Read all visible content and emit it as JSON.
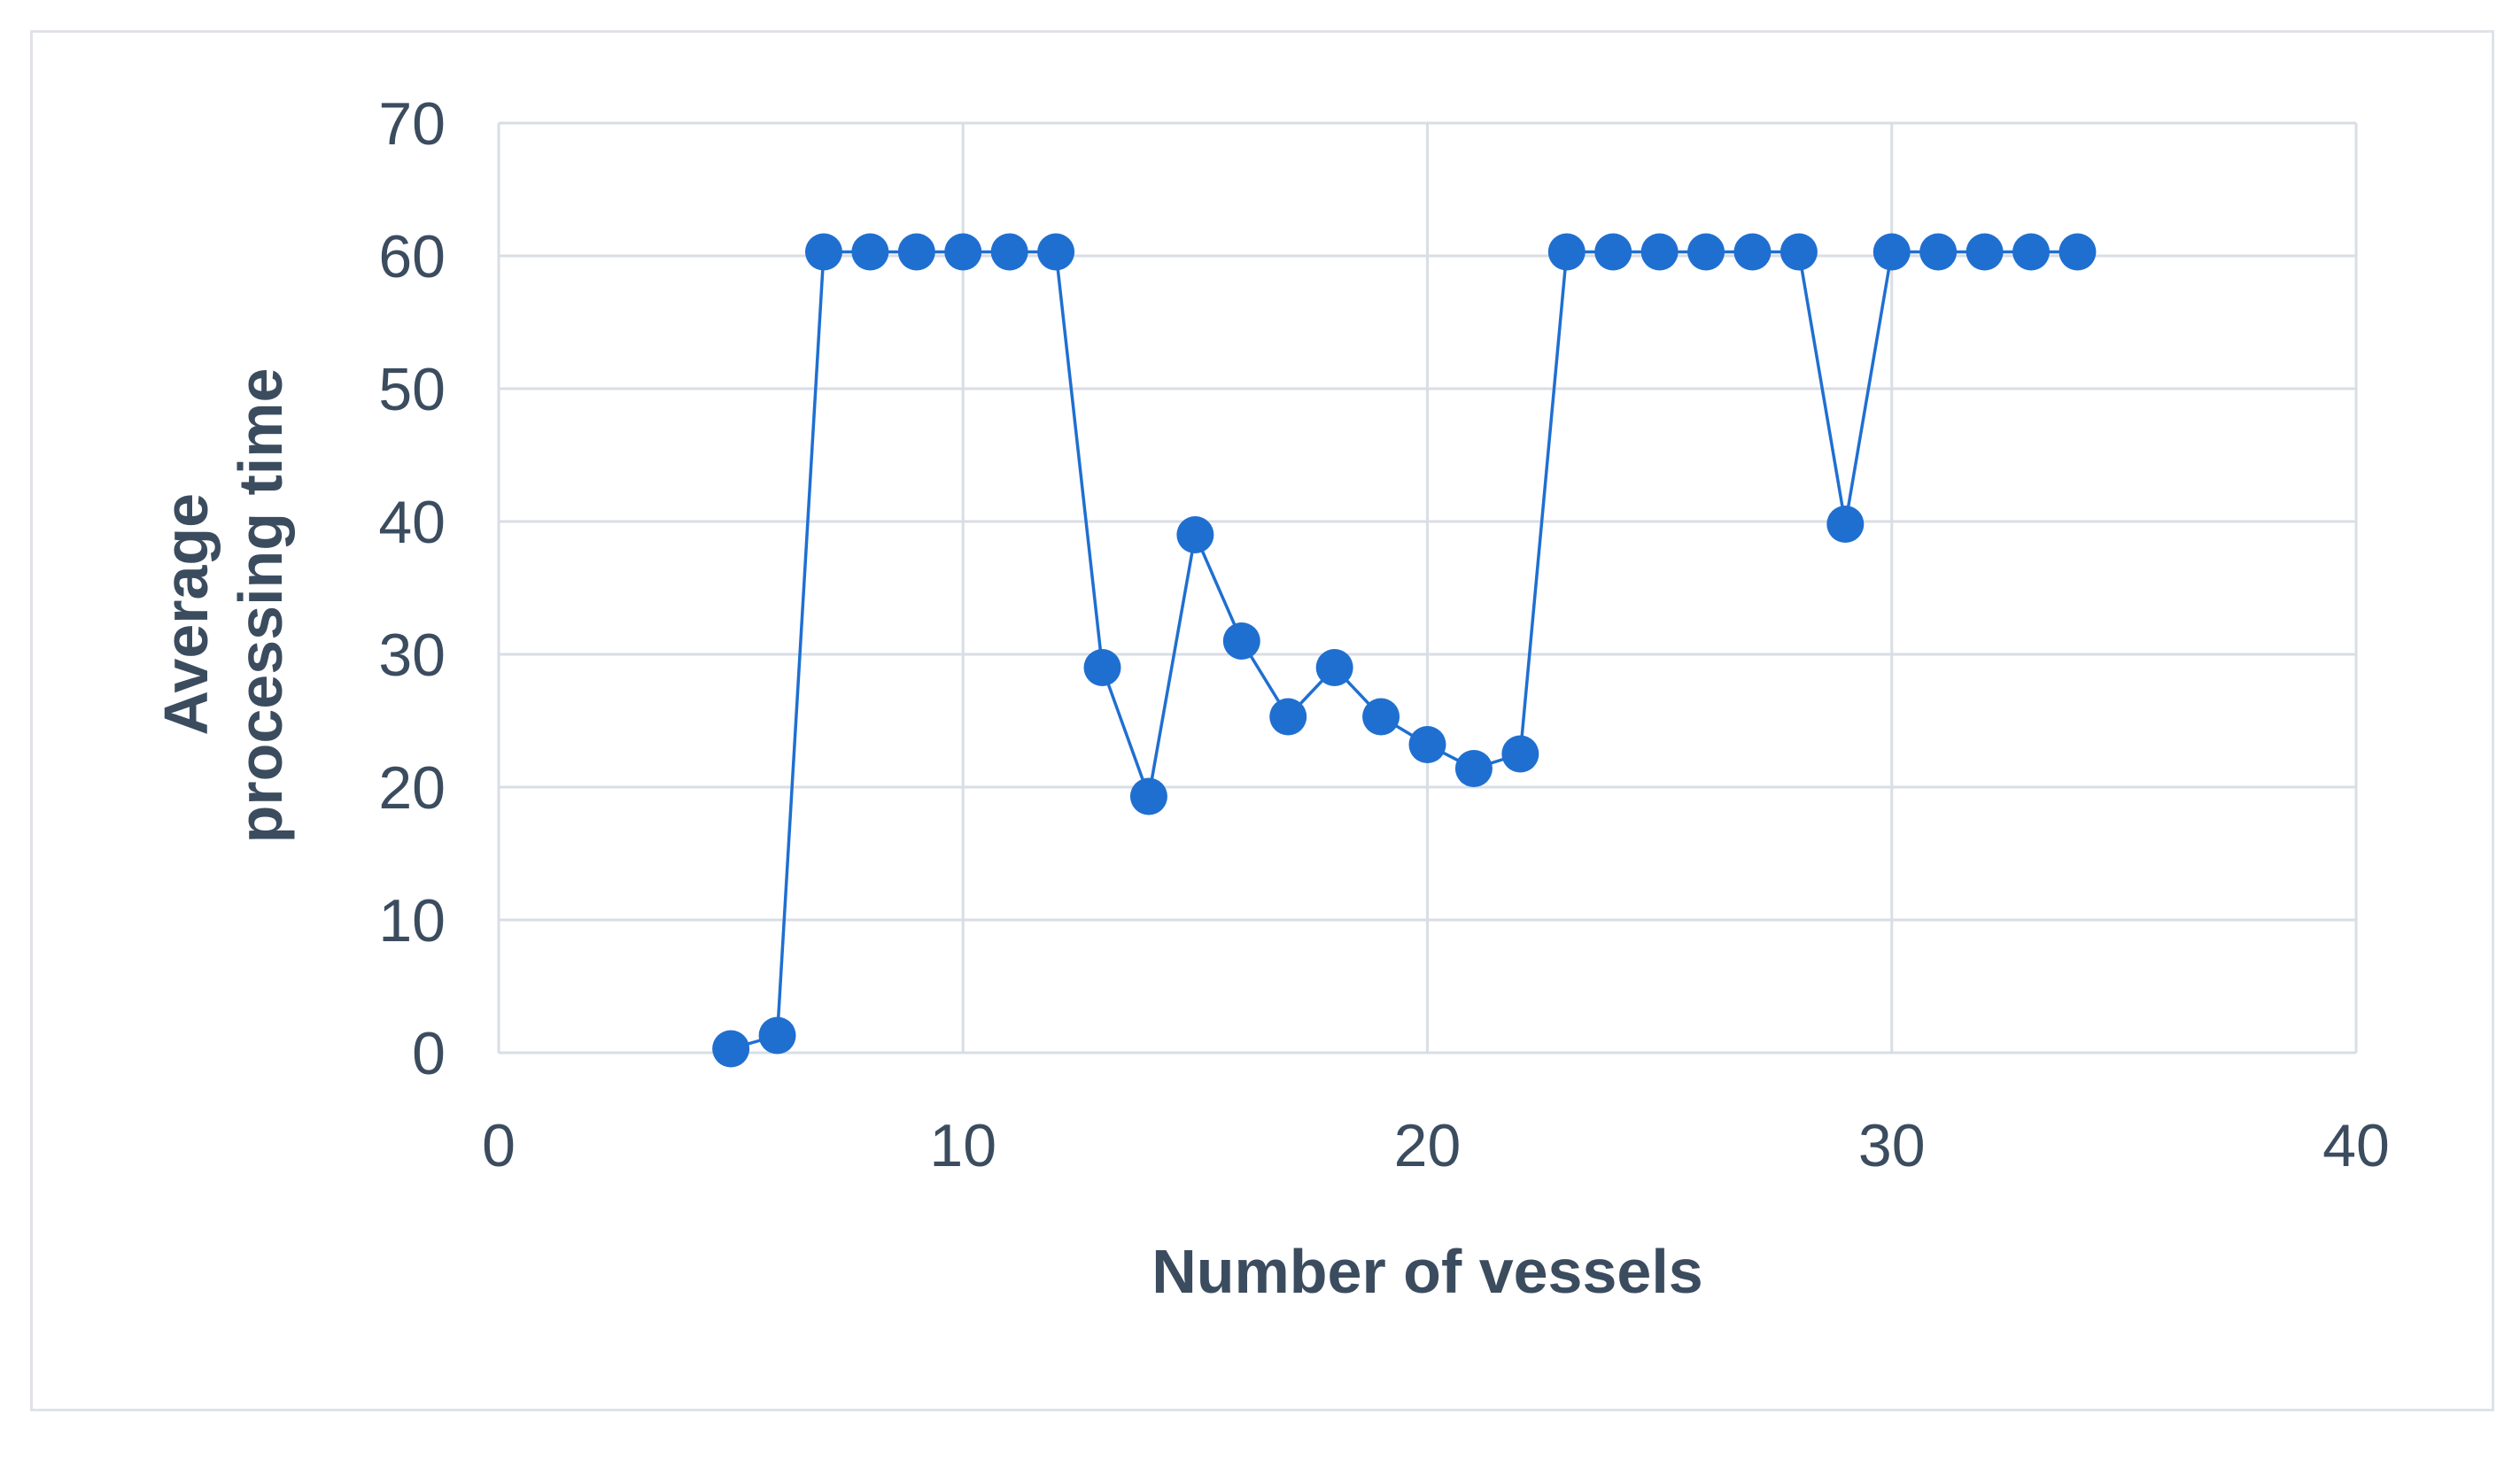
{
  "chart_data": {
    "type": "scatter",
    "title": "",
    "xlabel": "Number of vessels",
    "ylabel": [
      "Average",
      "processing time"
    ],
    "xlim": [
      0,
      40
    ],
    "ylim": [
      0,
      70
    ],
    "xticks": [
      0,
      10,
      20,
      30,
      40
    ],
    "yticks": [
      0,
      10,
      20,
      30,
      40,
      50,
      60,
      70
    ],
    "grid": true,
    "legend": "none",
    "series": [
      {
        "style": "line-with-markers",
        "color": "#1f6fd1",
        "points": [
          {
            "x": 5,
            "y": 0.3
          },
          {
            "x": 6,
            "y": 1.3
          },
          {
            "x": 7,
            "y": 60.3
          },
          {
            "x": 8,
            "y": 60.3
          },
          {
            "x": 9,
            "y": 60.3
          },
          {
            "x": 10,
            "y": 60.3
          },
          {
            "x": 11,
            "y": 60.3
          },
          {
            "x": 12,
            "y": 60.3
          },
          {
            "x": 13,
            "y": 29
          },
          {
            "x": 14,
            "y": 19.3
          },
          {
            "x": 15,
            "y": 39
          },
          {
            "x": 16,
            "y": 31
          },
          {
            "x": 17,
            "y": 25.3
          },
          {
            "x": 18,
            "y": 29
          },
          {
            "x": 19,
            "y": 25.3
          },
          {
            "x": 20,
            "y": 23.2
          },
          {
            "x": 21,
            "y": 21.4
          },
          {
            "x": 22,
            "y": 22.5
          },
          {
            "x": 23,
            "y": 60.3
          },
          {
            "x": 24,
            "y": 60.3
          },
          {
            "x": 25,
            "y": 60.3
          },
          {
            "x": 26,
            "y": 60.3
          },
          {
            "x": 27,
            "y": 60.3
          },
          {
            "x": 28,
            "y": 60.3
          },
          {
            "x": 29,
            "y": 39.8
          },
          {
            "x": 30,
            "y": 60.3
          },
          {
            "x": 31,
            "y": 60.3
          },
          {
            "x": 32,
            "y": 60.3
          },
          {
            "x": 33,
            "y": 60.3
          },
          {
            "x": 34,
            "y": 60.3
          }
        ]
      }
    ]
  },
  "colors": {
    "series": "#1f6fd1",
    "grid": "#d9dee5",
    "text": "#3b4c5f",
    "frame": "#dfe3e8"
  }
}
